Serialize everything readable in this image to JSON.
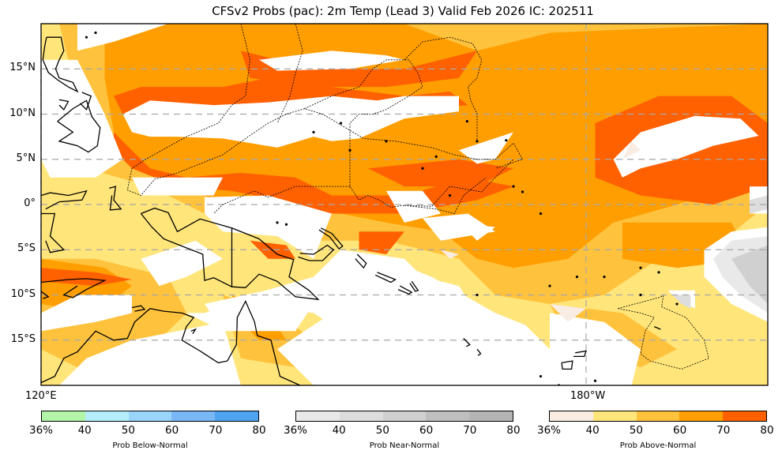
{
  "title": "CFSv2 Probs (pac): 2m Temp (Lead 3) Valid Feb 2026 IC: 202511",
  "map": {
    "region": "pac",
    "lon_range": [
      120,
      200
    ],
    "lat_range": [
      -20,
      20
    ],
    "lat_labels": [
      {
        "lat": 15,
        "label": "15°N"
      },
      {
        "lat": 10,
        "label": "10°N"
      },
      {
        "lat": 5,
        "label": "5°N"
      },
      {
        "lat": 0,
        "label": "0°"
      },
      {
        "lat": -5,
        "label": "5°S"
      },
      {
        "lat": -10,
        "label": "10°S"
      },
      {
        "lat": -15,
        "label": "15°S"
      }
    ],
    "lon_labels": [
      {
        "lon": 120,
        "label": "120°E"
      },
      {
        "lon": 180,
        "label": "180°W"
      }
    ],
    "gridlines": "dashed"
  },
  "colorbars": [
    {
      "name": "below-normal",
      "label": "Prob Below-Normal",
      "ticks": [
        "36%",
        "40",
        "50",
        "60",
        "70",
        "80"
      ],
      "colors": [
        "#b3f5a8",
        "#b5eefa",
        "#99d4fa",
        "#79b8f5",
        "#4fa4f2"
      ]
    },
    {
      "name": "near-normal",
      "label": "Prob Near-Normal",
      "ticks": [
        "36%",
        "40",
        "50",
        "60",
        "70",
        "80"
      ],
      "colors": [
        "#e9e9e9",
        "#dddddd",
        "#d0d0d0",
        "#bfbfbf",
        "#b4b4b4"
      ]
    },
    {
      "name": "above-normal",
      "label": "Prob Above-Normal",
      "ticks": [
        "36%",
        "40",
        "50",
        "60",
        "70",
        "80"
      ],
      "colors": [
        "#f9ede3",
        "#ffe57a",
        "#ffc23c",
        "#ff9e00",
        "#ff6000"
      ]
    }
  ]
}
